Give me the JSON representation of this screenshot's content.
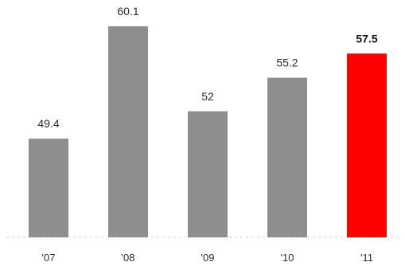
{
  "chart_data": {
    "type": "bar",
    "title": "",
    "xlabel": "",
    "ylabel": "",
    "categories": [
      "'07",
      "'08",
      "'09",
      "'10",
      "'11"
    ],
    "values": [
      49.4,
      60.1,
      52,
      55.2,
      57.5
    ],
    "value_labels": [
      "49.4",
      "60.1",
      "52",
      "55.2",
      "57.5"
    ],
    "highlight_index": 4,
    "colors": {
      "bar": "#8e8e8e",
      "highlight": "#ff0000",
      "baseline": "#cfcfcf"
    },
    "grid": false,
    "legend": "none"
  }
}
